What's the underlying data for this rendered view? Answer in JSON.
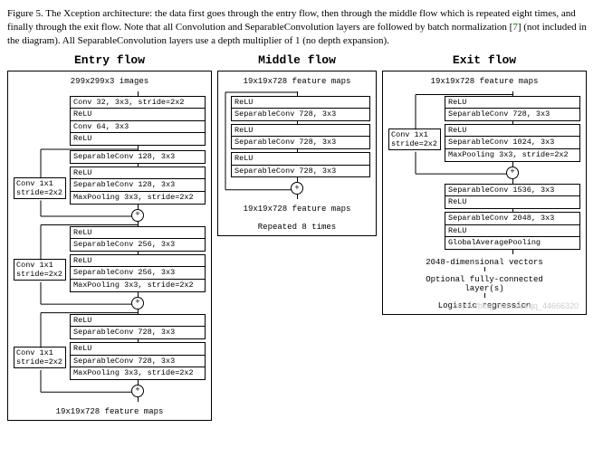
{
  "caption": {
    "prefix": "Figure 5. ",
    "body1": "The Xception architecture: the data first goes through the entry flow, then through the middle flow which is repeated eight times, and finally through the exit flow. Note that all Convolution and SeparableConvolution layers are followed by batch normalization [",
    "refnum": "7",
    "body2": "] (not included in the diagram). All SeparableConvolution layers use a depth multiplier of 1 (no depth expansion)."
  },
  "entry": {
    "title": "Entry flow",
    "input": "299x299x3 images",
    "stem": [
      "Conv 32, 3x3, stride=2x2",
      "ReLU",
      "Conv 64, 3x3",
      "ReLU"
    ],
    "skip": "Conv 1x1\nstride=2x2",
    "block1": [
      "SeparableConv 128, 3x3",
      "ReLU",
      "SeparableConv 128, 3x3",
      "MaxPooling 3x3, stride=2x2"
    ],
    "block2": [
      "ReLU",
      "SeparableConv 256, 3x3",
      "ReLU",
      "SeparableConv 256, 3x3",
      "MaxPooling 3x3, stride=2x2"
    ],
    "block3": [
      "ReLU",
      "SeparableConv 728, 3x3",
      "ReLU",
      "SeparableConv 728, 3x3",
      "MaxPooling 3x3, stride=2x2"
    ],
    "output": "19x19x728 feature maps"
  },
  "middle": {
    "title": "Middle flow",
    "input": "19x19x728 feature maps",
    "ops": [
      "ReLU",
      "SeparableConv 728, 3x3",
      "ReLU",
      "SeparableConv 728, 3x3",
      "ReLU",
      "SeparableConv 728, 3x3"
    ],
    "output": "19x19x728 feature maps",
    "note": "Repeated 8 times"
  },
  "exit": {
    "title": "Exit flow",
    "input": "19x19x728 feature maps",
    "skip": "Conv 1x1\nstride=2x2",
    "block1": [
      "ReLU",
      "SeparableConv 728, 3x3",
      "ReLU",
      "SeparableConv 1024, 3x3",
      "MaxPooling 3x3, stride=2x2"
    ],
    "block2": [
      "SeparableConv 1536, 3x3",
      "ReLU",
      "SeparableConv 2048, 3x3",
      "ReLU",
      "GlobalAveragePooling"
    ],
    "text1": "2048-dimensional vectors",
    "text2": "Optional fully-connected\nlayer(s)",
    "text3": "Logistic regression"
  },
  "colors": {
    "border": "#000000",
    "bg": "#ffffff",
    "ref": "#007000",
    "watermark": "#cccccc"
  },
  "watermark": "https://blog.csdn.net/qq_44666320"
}
